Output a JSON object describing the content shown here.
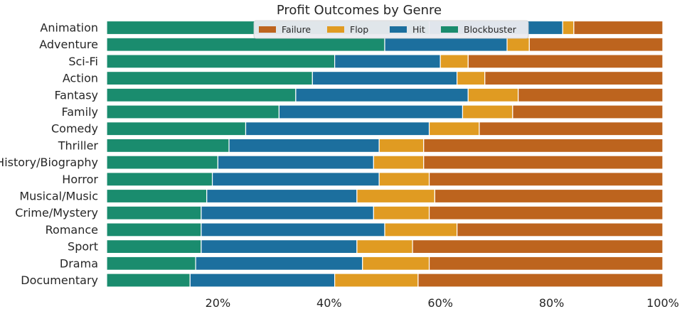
{
  "chart_data": {
    "type": "bar",
    "orientation": "horizontal",
    "stacked": true,
    "title": "Profit Outcomes by Genre",
    "xlabel": "",
    "ylabel": "",
    "xlim": [
      0,
      100
    ],
    "xticks": [
      20,
      40,
      60,
      80,
      100
    ],
    "xtick_labels": [
      "20%",
      "40%",
      "60%",
      "80%",
      "100%"
    ],
    "grid": false,
    "legend_position": "top",
    "categories": [
      "Animation",
      "Adventure",
      "Sci-Fi",
      "Action",
      "Fantasy",
      "Family",
      "Comedy",
      "Thriller",
      "History/Biography",
      "Horror",
      "Musical/Music",
      "Crime/Mystery",
      "Romance",
      "Sport",
      "Drama",
      "Documentary"
    ],
    "series": [
      {
        "name": "Blockbuster",
        "color": "#1a8c6e",
        "values": [
          58,
          50,
          41,
          37,
          34,
          31,
          25,
          22,
          20,
          19,
          18,
          17,
          17,
          17,
          16,
          15
        ]
      },
      {
        "name": "Hit",
        "color": "#1c6f9e",
        "values": [
          24,
          22,
          19,
          26,
          31,
          33,
          33,
          27,
          28,
          30,
          27,
          31,
          33,
          28,
          30,
          26
        ]
      },
      {
        "name": "Flop",
        "color": "#e09b22",
        "values": [
          2,
          4,
          5,
          5,
          9,
          9,
          9,
          8,
          9,
          9,
          14,
          10,
          13,
          10,
          12,
          15
        ]
      },
      {
        "name": "Failure",
        "color": "#bd641e",
        "values": [
          16,
          24,
          35,
          32,
          26,
          27,
          33,
          43,
          43,
          42,
          41,
          42,
          37,
          45,
          42,
          44
        ]
      }
    ],
    "legend_order": [
      "Failure",
      "Flop",
      "Hit",
      "Blockbuster"
    ]
  }
}
